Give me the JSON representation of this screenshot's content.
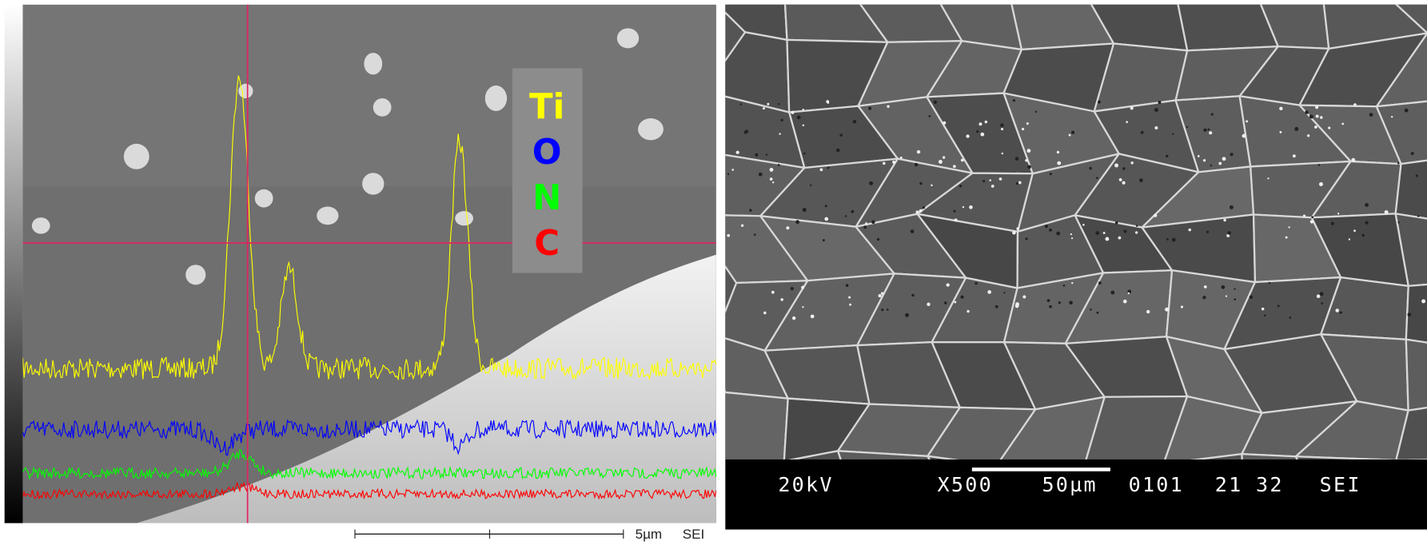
{
  "left_panel": {
    "legend": [
      "Ti",
      "O",
      "N",
      "C"
    ],
    "scale_label": "5µm",
    "detector": "SEI"
  },
  "right_panel": {
    "info": [
      "20kV",
      "X500",
      "50µm",
      "0101",
      "21",
      "32",
      "SEI"
    ]
  }
}
